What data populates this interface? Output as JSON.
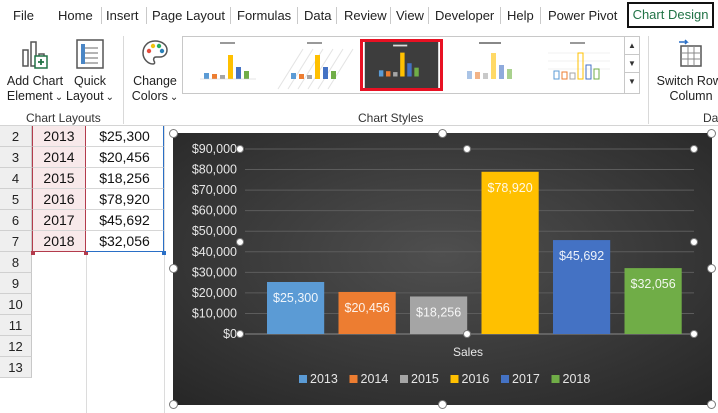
{
  "menu": {
    "tabs": [
      "File",
      "Home",
      "Insert",
      "Page Layout",
      "Formulas",
      "Data",
      "Review",
      "View",
      "Developer",
      "Help",
      "Power Pivot"
    ],
    "active_tab": "Chart Design"
  },
  "ribbon": {
    "add_chart_element": {
      "line1": "Add Chart",
      "line2": "Element"
    },
    "quick_layout": {
      "line1": "Quick",
      "line2": "Layout"
    },
    "change_colors": {
      "line1": "Change",
      "line2": "Colors"
    },
    "switch_row_column": {
      "line1": "Switch Row/",
      "line2": "Column"
    },
    "groups": {
      "chart_layouts": "Chart Layouts",
      "chart_styles": "Chart Styles",
      "data": "Dat"
    },
    "dropdown_glyph": "⌄"
  },
  "sheet": {
    "rows": [
      {
        "num": "2",
        "year": "2013",
        "sales": "$25,300"
      },
      {
        "num": "3",
        "year": "2014",
        "sales": "$20,456"
      },
      {
        "num": "4",
        "year": "2015",
        "sales": "$18,256"
      },
      {
        "num": "5",
        "year": "2016",
        "sales": "$78,920"
      },
      {
        "num": "6",
        "year": "2017",
        "sales": "$45,692"
      },
      {
        "num": "7",
        "year": "2018",
        "sales": "$32,056"
      }
    ],
    "empty_rows": [
      "8",
      "9",
      "10",
      "11",
      "12",
      "13"
    ]
  },
  "chart_data": {
    "type": "bar",
    "xlabel": "Sales",
    "ylim": [
      0,
      90000
    ],
    "y_ticks": [
      "$0",
      "$10,000",
      "$20,000",
      "$30,000",
      "$40,000",
      "$50,000",
      "$60,000",
      "$70,000",
      "$80,000",
      "$90,000"
    ],
    "grid": true,
    "legend": "bottom",
    "series": [
      {
        "name": "2013",
        "value": 25300,
        "label": "$25,300",
        "color": "#5b9bd5"
      },
      {
        "name": "2014",
        "value": 20456,
        "label": "$20,456",
        "color": "#ed7d31"
      },
      {
        "name": "2015",
        "value": 18256,
        "label": "$18,256",
        "color": "#a5a5a5"
      },
      {
        "name": "2016",
        "value": 78920,
        "label": "$78,920",
        "color": "#ffc000"
      },
      {
        "name": "2017",
        "value": 45692,
        "label": "$45,692",
        "color": "#4472c4"
      },
      {
        "name": "2018",
        "value": 32056,
        "label": "$32,056",
        "color": "#70ad47"
      }
    ]
  }
}
